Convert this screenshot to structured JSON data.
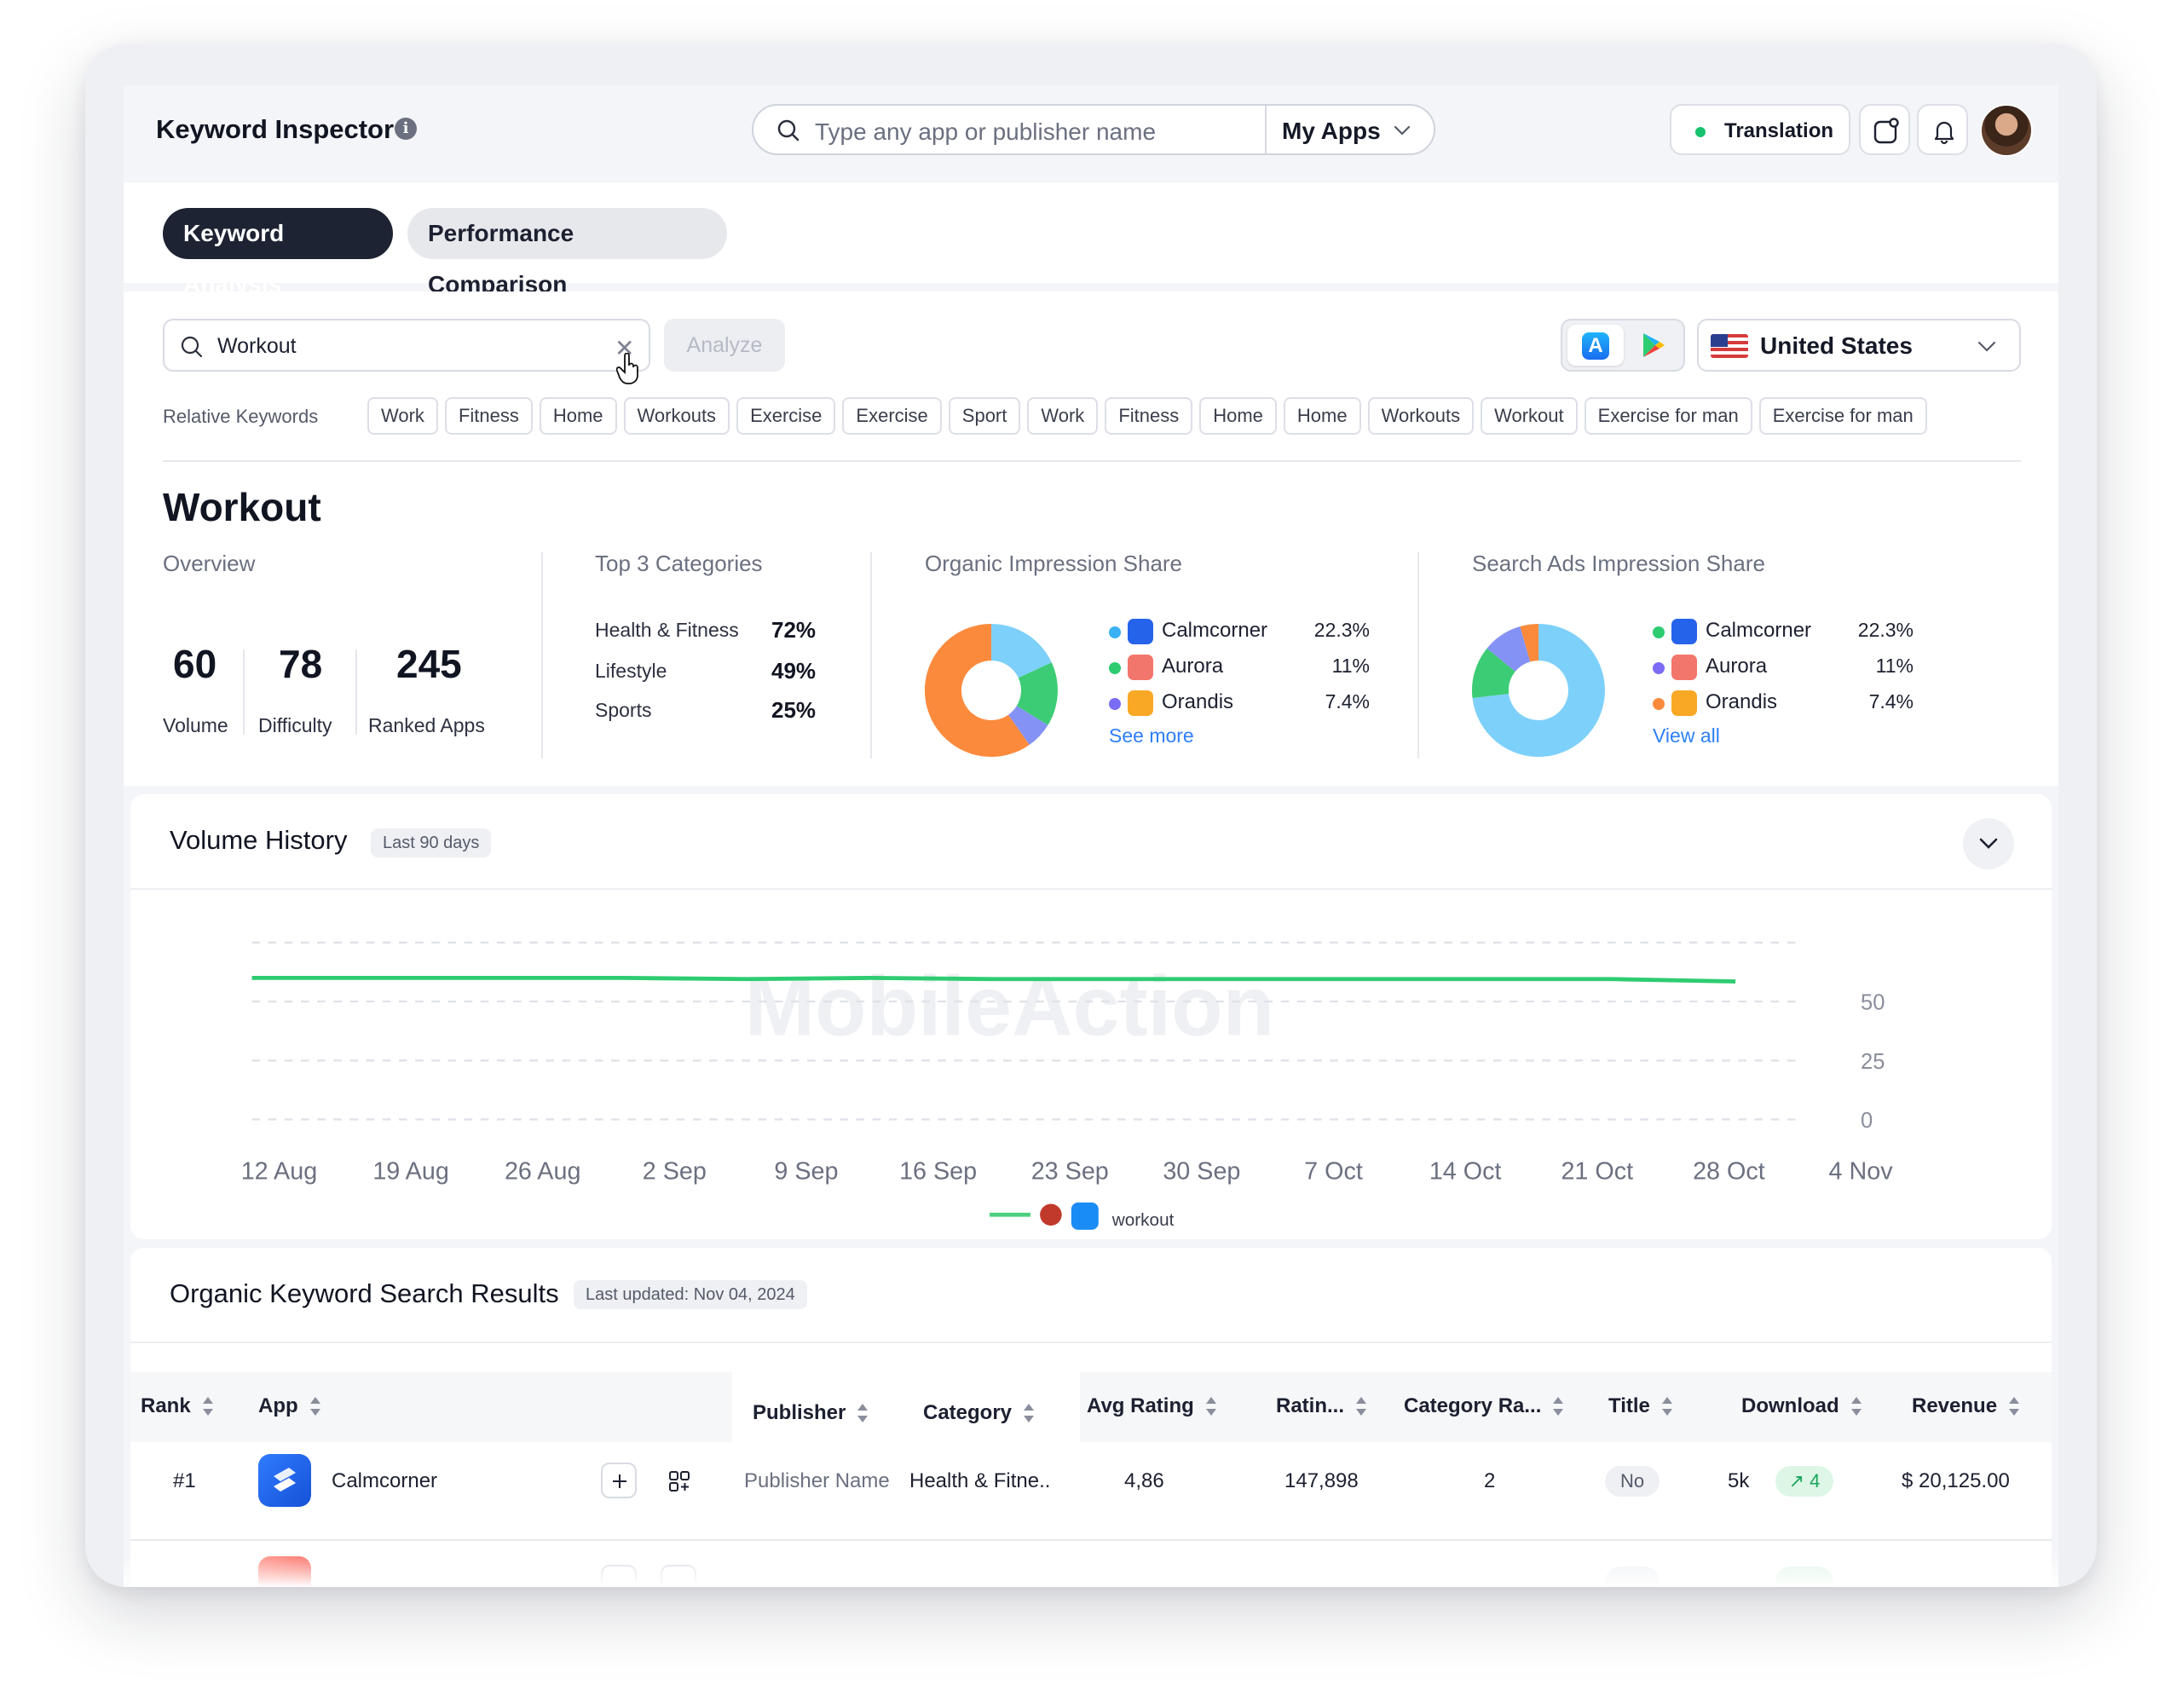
{
  "app": {
    "title": "Keyword Inspector"
  },
  "search": {
    "placeholder": "Type any app or publisher name",
    "scope": "My Apps"
  },
  "topbar": {
    "translation_label": "Translation"
  },
  "tabs": [
    {
      "label": "Keyword Analysis",
      "active": true
    },
    {
      "label": "Performance Comparison",
      "active": false
    }
  ],
  "keyword_search": {
    "value": "Workout",
    "analyze_label": "Analyze",
    "country": "United States"
  },
  "relative_keywords": {
    "label": "Relative Keywords",
    "items": [
      "Work",
      "Fitness",
      "Home",
      "Workouts",
      "Exercise",
      "Exercise",
      "Sport",
      "Work",
      "Fitness",
      "Home",
      "Home",
      "Workouts",
      "Workout",
      "Exercise for man",
      "Exercise for man"
    ]
  },
  "keyword_title": "Workout",
  "overview": {
    "title": "Overview",
    "stats": [
      {
        "value": "60",
        "label": "Volume"
      },
      {
        "value": "78",
        "label": "Difficulty"
      },
      {
        "value": "245",
        "label": "Ranked Apps"
      }
    ]
  },
  "top_categories": {
    "title": "Top 3 Categories",
    "items": [
      {
        "name": "Health & Fitness",
        "value": "72%"
      },
      {
        "name": "Lifestyle",
        "value": "49%"
      },
      {
        "name": "Sports",
        "value": "25%"
      }
    ]
  },
  "organic_share": {
    "title": "Organic Impression Share",
    "link": "See more",
    "legend": [
      {
        "name": "Calmcorner",
        "value": "22.3%",
        "dot": "#3ab0f5"
      },
      {
        "name": "Aurora",
        "value": "11%",
        "dot": "#2ecc71"
      },
      {
        "name": "Orandis",
        "value": "7.4%",
        "dot": "#7b6cf6"
      }
    ]
  },
  "ads_share": {
    "title": "Search Ads Impression Share",
    "link": "View all",
    "legend": [
      {
        "name": "Calmcorner",
        "value": "22.3%",
        "dot": "#2ecc71"
      },
      {
        "name": "Aurora",
        "value": "11%",
        "dot": "#7b6cf6"
      },
      {
        "name": "Orandis",
        "value": "7.4%",
        "dot": "#fb8a3c"
      }
    ]
  },
  "volume_history": {
    "title": "Volume History",
    "badge": "Last 90 days",
    "watermark": "MobileAction",
    "legend_label": "workout"
  },
  "chart_data": {
    "type": "line",
    "x": [
      "12 Aug",
      "19 Aug",
      "26 Aug",
      "2 Sep",
      "9 Sep",
      "16 Sep",
      "23 Sep",
      "30 Sep",
      "7 Oct",
      "14 Oct",
      "21 Oct",
      "28 Oct",
      "4 Nov"
    ],
    "y_ticks": [
      "50",
      "25",
      "0"
    ],
    "ylim": [
      0,
      75
    ],
    "series": [
      {
        "name": "workout",
        "color": "#2ecc71",
        "values": [
          60,
          60,
          60,
          60,
          59.5,
          60,
          59.5,
          59.5,
          59.5,
          59.5,
          59.5,
          59.5,
          58.5
        ]
      }
    ],
    "grid": true,
    "legend": "bottom"
  },
  "organic_results": {
    "title": "Organic Keyword Search Results",
    "badge": "Last updated: Nov 04, 2024",
    "columns": [
      "Rank",
      "App",
      "Publisher",
      "Category",
      "Avg Rating",
      "Ratin...",
      "Category Ra...",
      "Title",
      "Download",
      "Revenue"
    ],
    "rows": [
      {
        "rank": "#1",
        "app": "Calmcorner",
        "publisher": "Publisher Name",
        "category": "Health & Fitne..",
        "avg_rating": "4,86",
        "ratings": "147,898",
        "category_rank": "2",
        "title": "No",
        "download": "5k",
        "download_change": "4",
        "revenue": "$ 20,125.00"
      }
    ]
  }
}
